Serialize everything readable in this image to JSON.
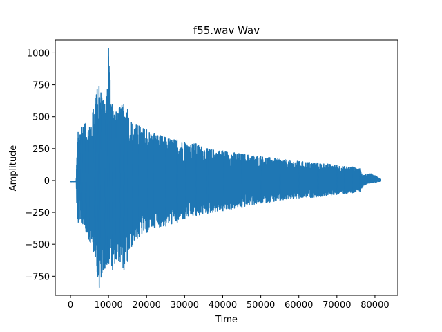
{
  "chart_data": {
    "type": "line",
    "title": "f55.wav Wav",
    "xlabel": "Time",
    "ylabel": "Amplitude",
    "xlim": [
      -4000,
      86000
    ],
    "ylim": [
      -900,
      1100
    ],
    "xticks": [
      0,
      10000,
      20000,
      30000,
      40000,
      50000,
      60000,
      70000,
      80000
    ],
    "yticks": [
      -750,
      -500,
      -250,
      0,
      250,
      500,
      750,
      1000
    ],
    "grid": false,
    "color": "#1f77b4",
    "series": [
      {
        "samples": 81500,
        "envelope": {
          "x": [
            0,
            1500,
            1600,
            1800,
            2000,
            2500,
            3000,
            4000,
            5000,
            6000,
            6500,
            7000,
            7500,
            8000,
            9000,
            9500,
            10000,
            11000,
            12000,
            13000,
            14000,
            15000,
            16000,
            18000,
            20000,
            22000,
            25000,
            28000,
            30000,
            33000,
            36000,
            40000,
            45000,
            50000,
            55000,
            60000,
            65000,
            70000,
            72000,
            74000,
            76000,
            76500,
            77000,
            78000,
            79000,
            80000,
            81000,
            81500
          ],
          "upper": [
            -5,
            -5,
            120,
            300,
            380,
            360,
            420,
            450,
            420,
            560,
            650,
            720,
            740,
            690,
            600,
            660,
            1040,
            600,
            540,
            580,
            600,
            560,
            460,
            430,
            400,
            370,
            340,
            320,
            300,
            290,
            250,
            235,
            210,
            190,
            170,
            150,
            140,
            120,
            110,
            110,
            95,
            55,
            40,
            50,
            55,
            40,
            20,
            5
          ],
          "lower": [
            -10,
            -10,
            -150,
            -300,
            -330,
            -300,
            -330,
            -400,
            -480,
            -560,
            -600,
            -720,
            -840,
            -760,
            -690,
            -660,
            -650,
            -700,
            -620,
            -640,
            -700,
            -640,
            -520,
            -440,
            -410,
            -370,
            -360,
            -330,
            -300,
            -280,
            -260,
            -240,
            -210,
            -180,
            -160,
            -140,
            -130,
            -110,
            -105,
            -100,
            -90,
            -60,
            -40,
            -25,
            -20,
            -20,
            -10,
            -5
          ]
        }
      }
    ]
  }
}
